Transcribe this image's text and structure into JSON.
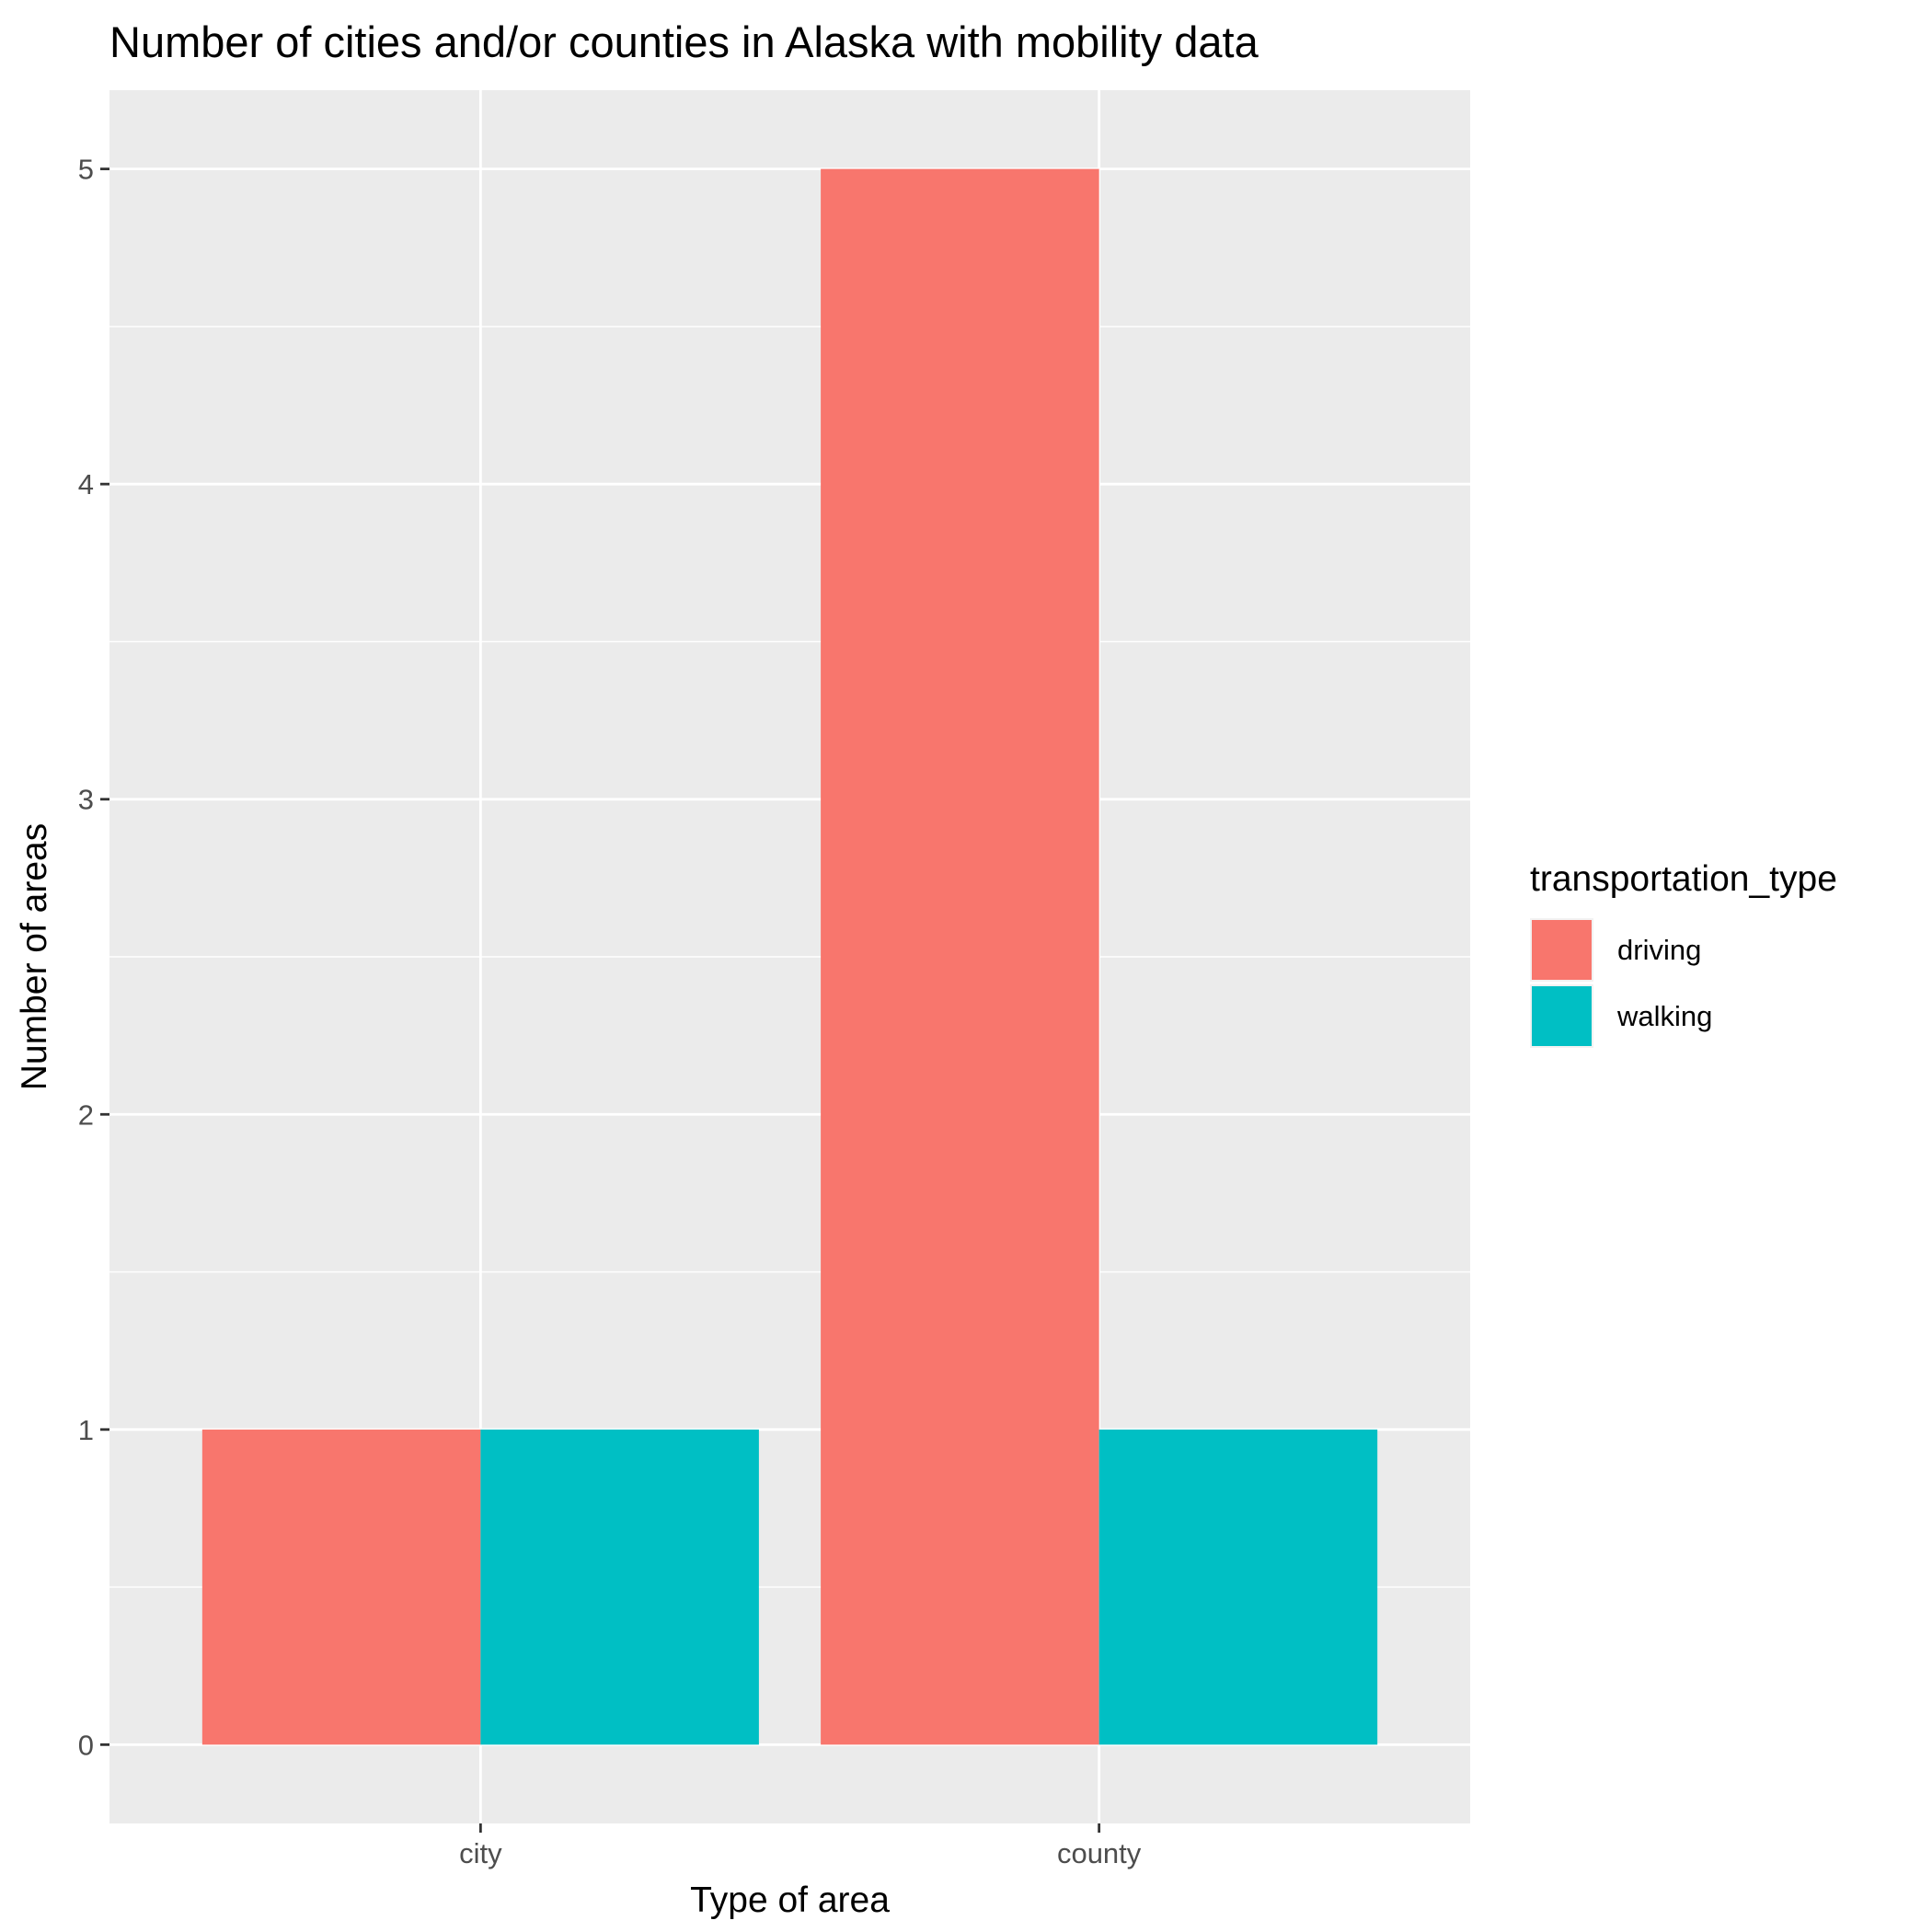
{
  "chart_data": {
    "type": "bar",
    "title": "Number of cities and/or counties in Alaska with mobility data",
    "xlabel": "Type of area",
    "ylabel": "Number of areas",
    "categories": [
      "city",
      "county"
    ],
    "series": [
      {
        "name": "driving",
        "values": [
          1,
          5
        ],
        "color": "#F8766D"
      },
      {
        "name": "walking",
        "values": [
          1,
          1
        ],
        "color": "#00BFC4"
      }
    ],
    "ylim": [
      -0.25,
      5.25
    ],
    "y_ticks": [
      0,
      1,
      2,
      3,
      4,
      5
    ],
    "y_minor_ticks": [
      0.5,
      1.5,
      2.5,
      3.5,
      4.5
    ],
    "grid": true,
    "panel_background": "#EBEBEB",
    "grid_color": "#FFFFFF",
    "legend": {
      "title": "transportation_type",
      "position": "right"
    }
  }
}
